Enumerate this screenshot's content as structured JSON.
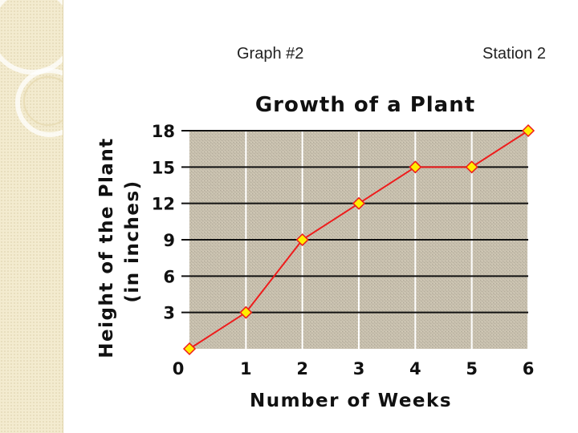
{
  "slide": {
    "left_label": "Graph #2",
    "right_label": "Station 2"
  },
  "colors": {
    "plot_background": "#c8c0ae",
    "line": "#ee1c1c",
    "marker_fill": "#ffee00",
    "gridline": "#ffffff",
    "sidebar": "#f3ebcf"
  },
  "chart_data": {
    "type": "line",
    "title": "Growth of a Plant",
    "xlabel": "Number of Weeks",
    "ylabel_line1": "Height of the Plant",
    "ylabel_line2": "(in inches)",
    "x": [
      0,
      1,
      2,
      3,
      4,
      5,
      6
    ],
    "series": [
      {
        "values": [
          0,
          3,
          9,
          12,
          15,
          15,
          18
        ]
      }
    ],
    "xticks": [
      "0",
      "1",
      "2",
      "3",
      "4",
      "5",
      "6"
    ],
    "yticks": [
      "3",
      "6",
      "9",
      "12",
      "15",
      "18"
    ],
    "ytick_values": [
      3,
      6,
      9,
      12,
      15,
      18
    ],
    "xlim": [
      0,
      6
    ],
    "ylim": [
      0,
      18
    ],
    "grid": true,
    "legend": "none"
  }
}
